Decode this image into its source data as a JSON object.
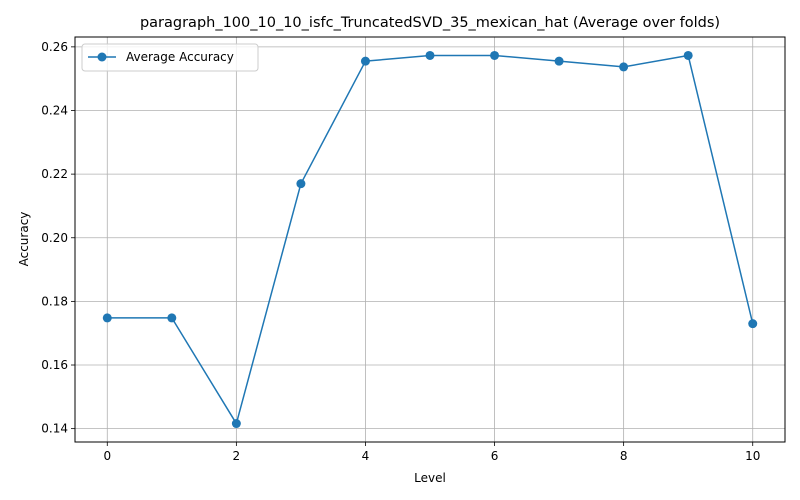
{
  "chart_data": {
    "type": "line",
    "title": "paragraph_100_10_10_isfc_TruncatedSVD_35_mexican_hat (Average over folds)",
    "xlabel": "Level",
    "ylabel": "Accuracy",
    "x": [
      0,
      1,
      2,
      3,
      4,
      5,
      6,
      7,
      8,
      9,
      10
    ],
    "series": [
      {
        "name": "Average Accuracy",
        "values": [
          0.1748,
          0.1748,
          0.1416,
          0.217,
          0.2555,
          0.2573,
          0.2573,
          0.2555,
          0.2537,
          0.2573,
          0.173
        ],
        "color": "#1f77b4",
        "marker": "circle"
      }
    ],
    "xlim": [
      -0.5,
      10.5
    ],
    "ylim": [
      0.1358,
      0.2631
    ],
    "xticks": [
      0,
      2,
      4,
      6,
      8,
      10
    ],
    "yticks": [
      0.14,
      0.16,
      0.18,
      0.2,
      0.22,
      0.24,
      0.26
    ],
    "xtick_labels": [
      "0",
      "2",
      "4",
      "6",
      "8",
      "10"
    ],
    "ytick_labels": [
      "0.14",
      "0.16",
      "0.18",
      "0.20",
      "0.22",
      "0.24",
      "0.26"
    ],
    "grid": true,
    "legend_position": "top-left"
  }
}
